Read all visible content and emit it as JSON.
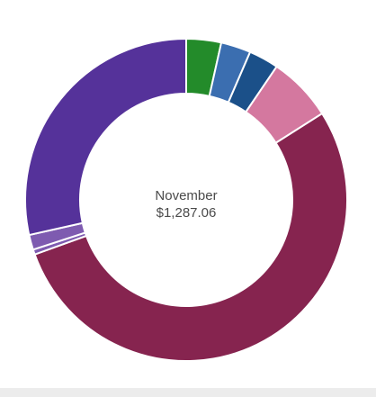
{
  "center": {
    "month": "November",
    "total": "$1,287.06"
  },
  "chart_data": {
    "type": "pie",
    "variant": "donut",
    "title": "",
    "slices": [
      {
        "value": 3.5,
        "color": "#238b2a"
      },
      {
        "value": 3.0,
        "color": "#3b6eb0"
      },
      {
        "value": 3.0,
        "color": "#1b5089"
      },
      {
        "value": 6.5,
        "color": "#d4789f"
      },
      {
        "value": 53.5,
        "color": "#86244f"
      },
      {
        "value": 0.5,
        "color": "#7e5bb0"
      },
      {
        "value": 1.5,
        "color": "#7e5bb0"
      },
      {
        "value": 28.5,
        "color": "#55329a"
      }
    ]
  }
}
